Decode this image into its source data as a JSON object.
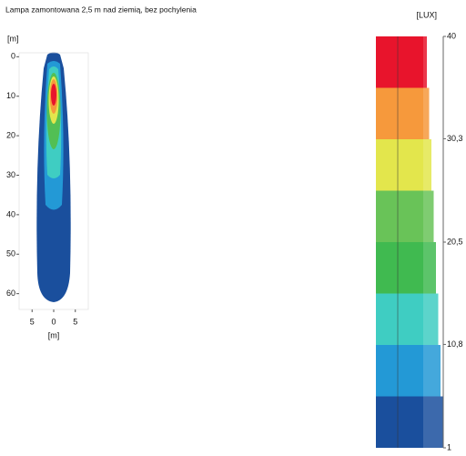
{
  "chart_data": {
    "type": "isolux",
    "title": "Lampa zamontowana 2,5 m nad ziemią, bez pochylenia",
    "x_label": "[m]",
    "y_label": "[m]",
    "xlim": [
      -8,
      8
    ],
    "xticks": [
      {
        "value": -5,
        "label": "5"
      },
      0,
      5
    ],
    "ylim": [
      -1,
      64
    ],
    "yticks": [
      0,
      10,
      20,
      30,
      40,
      50,
      60
    ],
    "colorbar": {
      "label": "[LUX]",
      "clim": [
        1,
        40
      ],
      "ticks": [
        40,
        {
          "value": 30.3,
          "label": "30,3"
        },
        {
          "value": 20.5,
          "label": "20,5"
        },
        {
          "value": 10.8,
          "label": "10,8"
        },
        1
      ],
      "colors": [
        "#e8142c",
        "#f6993c",
        "#e3e64c",
        "#69c358",
        "#40ba50",
        "#3fcdc2",
        "#2399d6",
        "#1a4f9d"
      ]
    }
  }
}
